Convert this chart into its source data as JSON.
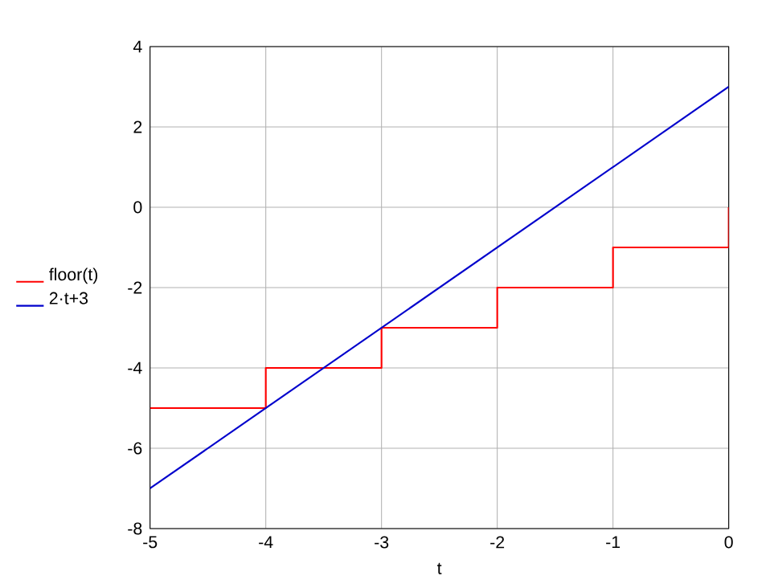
{
  "chart_data": {
    "type": "line",
    "xlabel": "t",
    "xlim": [
      -5,
      0
    ],
    "xticks": [
      -5,
      -4,
      -3,
      -2,
      -1,
      0
    ],
    "ylim": [
      -8,
      4
    ],
    "yticks": [
      -8,
      -6,
      -4,
      -2,
      0,
      2,
      4
    ],
    "grid": true,
    "legend": "left",
    "series": [
      {
        "name": "floor(t)",
        "type": "step",
        "color": "#ff0000",
        "x": [
          -5,
          -4,
          -3,
          -2,
          -1,
          0
        ],
        "values": [
          -5,
          -4,
          -3,
          -2,
          -1,
          0
        ]
      },
      {
        "name": "2·t+3",
        "color": "#0000cc",
        "x": [
          -5,
          0
        ],
        "values": [
          -7,
          3
        ]
      }
    ]
  }
}
